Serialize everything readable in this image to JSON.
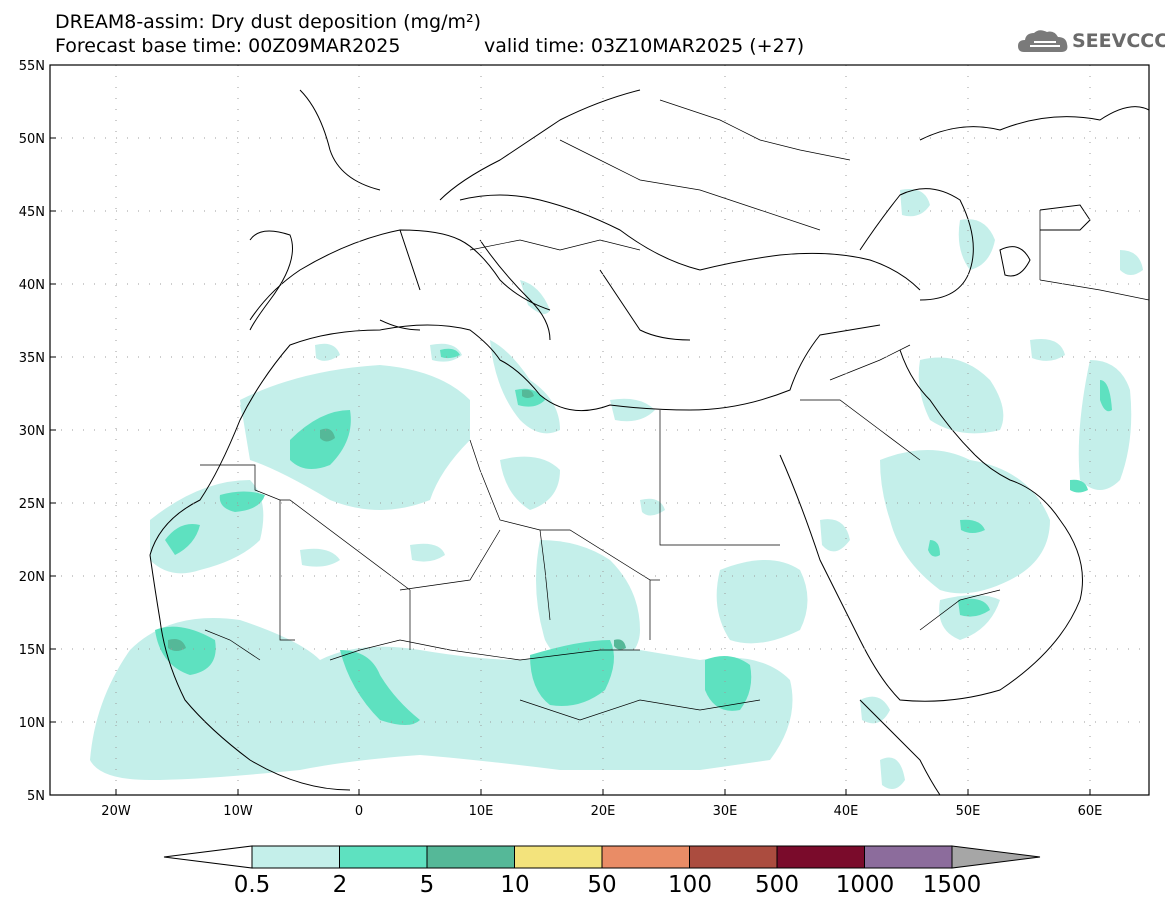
{
  "title": {
    "line1": "DREAM8-assim: Dry dust deposition (mg/m²)",
    "line2": "Forecast base time: 00Z09MAR2025",
    "valid": "valid time: 03Z10MAR2025 (+27)"
  },
  "logo": {
    "text": "SEEVCCC",
    "icon": "cloud-icon"
  },
  "axes": {
    "lat_labels": [
      "55N",
      "50N",
      "45N",
      "40N",
      "35N",
      "30N",
      "25N",
      "20N",
      "15N",
      "10N",
      "5N"
    ],
    "lon_labels": [
      "20W",
      "10W",
      "0",
      "10E",
      "20E",
      "30E",
      "40E",
      "50E",
      "60E"
    ]
  },
  "colorbar": {
    "labels": [
      "0.5",
      "2",
      "5",
      "10",
      "50",
      "100",
      "500",
      "1000",
      "1500"
    ],
    "colors": [
      "#c4efea",
      "#5ee1c0",
      "#55b898",
      "#f3e37c",
      "#e98c66",
      "#ab4c3f",
      "#7a0b2b",
      "#8c6c9c",
      "#a6a6a6"
    ]
  },
  "fill_colors": {
    "light": "#c4efea",
    "medium": "#5ee1c0",
    "dark": "#55b898"
  }
}
